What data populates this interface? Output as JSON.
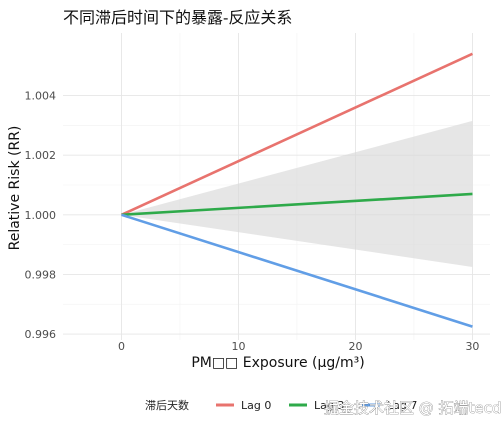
{
  "chart_data": {
    "type": "line",
    "title": "不同滞后时间下的暴露-反应关系",
    "xlabel": "PM₂.₅ Exposure (μg/m³)",
    "xlabel_display": "PM□□ Exposure (μg/m³)",
    "ylabel": "Relative Risk (RR)",
    "xlim": [
      -5,
      31.5
    ],
    "ylim": [
      0.9958,
      1.0061
    ],
    "x_ticks": [
      0,
      10,
      20,
      30
    ],
    "y_ticks": [
      0.996,
      0.998,
      1.0,
      1.002,
      1.004
    ],
    "y_tick_labels": [
      "0.996",
      "0.998",
      "1.000",
      "1.002",
      "1.004"
    ],
    "grid": true,
    "legend": {
      "title": "滞后天数",
      "placement": "bottom",
      "entries": [
        "Lag 0",
        "Lag 3",
        "Lag 7"
      ]
    },
    "x": [
      0,
      30
    ],
    "series": [
      {
        "name": "Lag 0",
        "color": "#e8736e",
        "values": [
          1.0,
          1.0054
        ]
      },
      {
        "name": "Lag 3",
        "color": "#2eaa4a",
        "values": [
          1.0,
          1.0007
        ]
      },
      {
        "name": "Lag 7",
        "color": "#619ee6",
        "values": [
          1.0,
          0.99625
        ]
      }
    ],
    "confidence_band": {
      "series": "Lag 3",
      "color": "#d9d9d9",
      "x": [
        0,
        30
      ],
      "lower": [
        1.0,
        0.99825
      ],
      "upper": [
        1.0,
        1.00315
      ]
    }
  },
  "watermark": "掘金技术社区 @ 拓端tecdat"
}
